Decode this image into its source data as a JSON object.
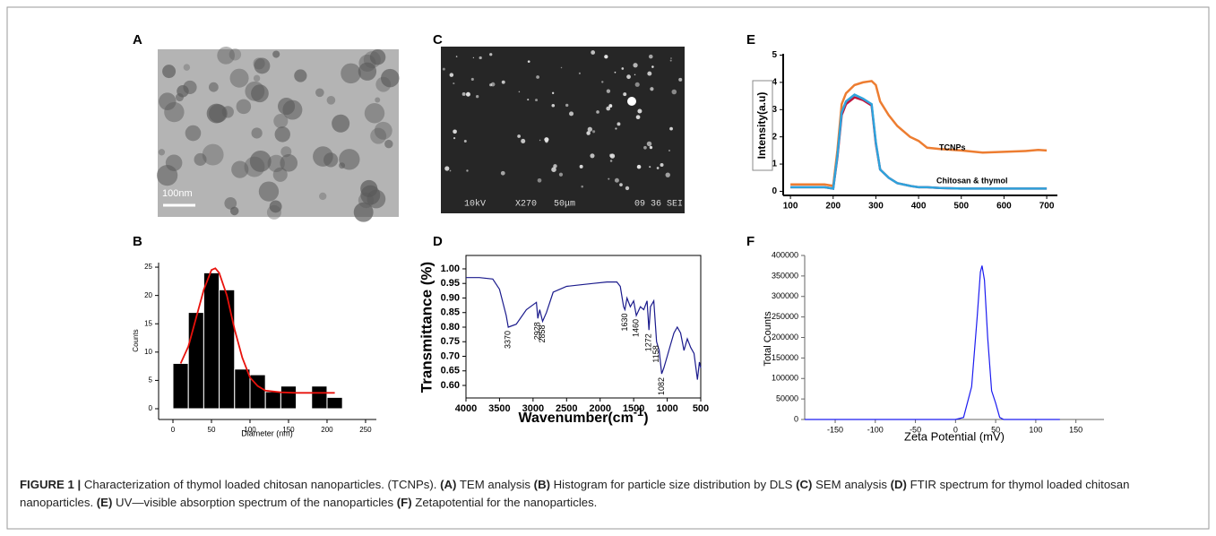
{
  "panels": [
    {
      "letter": "A",
      "scale_bar": "100nm"
    },
    {
      "letter": "C",
      "info": [
        "10kV",
        "X270",
        "50μm",
        "09 36 SEI"
      ]
    }
  ],
  "chart_data": [
    {
      "type": "histogram",
      "panel": "B",
      "xlabel": "Diameter (nm)",
      "ylabel": "Counts",
      "bins": [
        0,
        20,
        40,
        60,
        80,
        100,
        120,
        140,
        160,
        180,
        200,
        220
      ],
      "values": [
        8,
        17,
        24,
        21,
        7,
        6,
        3,
        4,
        0,
        4,
        2
      ],
      "color": "#000000",
      "fit": {
        "color": "#e8120c",
        "x": [
          10,
          20,
          30,
          40,
          50,
          55,
          60,
          70,
          80,
          90,
          100,
          110,
          120,
          140,
          160,
          180,
          210
        ],
        "y": [
          8,
          11,
          16,
          21,
          24.5,
          24.8,
          24,
          20,
          14,
          9,
          5.5,
          4,
          3.2,
          2.9,
          2.8,
          2.8,
          2.8
        ]
      },
      "xlim": [
        -18.6,
        264
      ],
      "ylim": [
        -1.9,
        25.8
      ],
      "xticks": [
        0,
        50,
        100,
        150,
        200,
        250
      ],
      "yticks": [
        0,
        5,
        10,
        15,
        20,
        25
      ]
    },
    {
      "type": "line",
      "panel": "D",
      "ylabel": "Transmittance (%)",
      "xlabel": {
        "text": "Wavenumber(cm",
        "sup": "-1",
        "tail": ")"
      },
      "x": [
        4000,
        3800,
        3600,
        3500,
        3400,
        3370,
        3250,
        3100,
        2950,
        2928,
        2900,
        2858,
        2800,
        2700,
        2500,
        2300,
        2100,
        1900,
        1750,
        1700,
        1650,
        1630,
        1600,
        1550,
        1500,
        1460,
        1400,
        1350,
        1300,
        1272,
        1250,
        1200,
        1158,
        1120,
        1082,
        1050,
        1000,
        950,
        900,
        850,
        800,
        750,
        700,
        650,
        600,
        550,
        520,
        500
      ],
      "values": [
        0.97,
        0.97,
        0.965,
        0.93,
        0.84,
        0.8,
        0.81,
        0.86,
        0.885,
        0.83,
        0.86,
        0.82,
        0.85,
        0.92,
        0.94,
        0.945,
        0.95,
        0.955,
        0.955,
        0.94,
        0.87,
        0.86,
        0.9,
        0.87,
        0.89,
        0.84,
        0.87,
        0.86,
        0.89,
        0.79,
        0.87,
        0.89,
        0.75,
        0.72,
        0.64,
        0.66,
        0.7,
        0.74,
        0.78,
        0.8,
        0.78,
        0.72,
        0.76,
        0.73,
        0.71,
        0.62,
        0.68,
        0.66
      ],
      "color": "#1a1a8c",
      "peak_labels": [
        3370,
        2928,
        2858,
        1630,
        1460,
        1272,
        1158,
        1082
      ],
      "xlim": [
        4000,
        500
      ],
      "ylim": [
        0.557,
        1.046
      ],
      "xticks": [
        4000,
        3500,
        3000,
        2500,
        2000,
        1500,
        1000,
        500
      ],
      "yticks": [
        {
          "value": 1,
          "label": "1.00"
        },
        0.95,
        {
          "value": 0.9,
          "label": "0.90"
        },
        0.85,
        {
          "value": 0.8,
          "label": "0.80"
        },
        0.75,
        {
          "value": 0.7,
          "label": "0.70"
        },
        0.65,
        {
          "value": 0.6,
          "label": "0.60"
        }
      ]
    },
    {
      "type": "line",
      "panel": "E",
      "ylabel": "Intensity(a.u)",
      "x": [
        100,
        150,
        180,
        200,
        210,
        220,
        230,
        250,
        270,
        290,
        300,
        310,
        330,
        350,
        380,
        400,
        420,
        450,
        500,
        550,
        600,
        650,
        680,
        700
      ],
      "series": [
        {
          "name": "TCNPs",
          "color": "#ed7d31",
          "values": [
            0.25,
            0.25,
            0.25,
            0.2,
            1.5,
            3.2,
            3.6,
            3.9,
            4.0,
            4.05,
            3.9,
            3.3,
            2.8,
            2.4,
            2.0,
            1.85,
            1.6,
            1.55,
            1.5,
            1.42,
            1.45,
            1.48,
            1.52,
            1.5
          ]
        },
        {
          "color": "#c0143c",
          "values": [
            0.15,
            0.15,
            0.15,
            0.1,
            1.25,
            2.8,
            3.2,
            3.45,
            3.35,
            3.15,
            1.75,
            0.8,
            0.5,
            0.3,
            0.2,
            0.15,
            0.15,
            0.12,
            0.1,
            0.1,
            0.1,
            0.1,
            0.1,
            0.1
          ]
        },
        {
          "name": "Chitosan & thymol",
          "color": "#2ea3dc",
          "values": [
            0.15,
            0.15,
            0.15,
            0.1,
            1.3,
            2.9,
            3.3,
            3.55,
            3.4,
            3.2,
            1.8,
            0.8,
            0.5,
            0.3,
            0.2,
            0.15,
            0.15,
            0.12,
            0.1,
            0.1,
            0.1,
            0.1,
            0.1,
            0.1
          ]
        }
      ],
      "xlim": [
        83,
        725
      ],
      "ylim": [
        -0.15,
        5.05
      ],
      "xticks": [
        100,
        200,
        300,
        400,
        500,
        600,
        700
      ],
      "yticks": [
        0,
        1,
        2,
        3,
        4,
        5
      ]
    },
    {
      "type": "line",
      "panel": "F",
      "xlabel": "Zeta Potential (mV)",
      "ylabel": "Total Counts",
      "x": [
        -188,
        0,
        10,
        20,
        27,
        31,
        33,
        36,
        40,
        45,
        50,
        55,
        60,
        130
      ],
      "values": [
        0,
        0,
        5000,
        80000,
        250000,
        360000,
        375000,
        340000,
        200000,
        70000,
        40000,
        5000,
        0,
        0
      ],
      "color": "#1c1cf0",
      "xlim": [
        -188,
        185
      ],
      "ylim": [
        0,
        400000
      ],
      "xticks": [
        -150,
        -100,
        -50,
        0,
        50,
        100,
        150
      ],
      "yticks": [
        0,
        50000,
        100000,
        150000,
        200000,
        250000,
        300000,
        350000,
        400000
      ]
    }
  ],
  "caption": [
    {
      "text": "FIGURE 1 |",
      "bold": true
    },
    {
      "text": " Characterization of thymol loaded chitosan nanoparticles. (TCNPs). "
    },
    {
      "text": "(A)",
      "bold": true
    },
    {
      "text": " TEM analysis "
    },
    {
      "text": "(B)",
      "bold": true
    },
    {
      "text": " Histogram for particle size distribution by DLS "
    },
    {
      "text": "(C)",
      "bold": true
    },
    {
      "text": " SEM analysis "
    },
    {
      "text": "(D)",
      "bold": true
    },
    {
      "text": " FTIR spectrum for thymol loaded chitosan nanoparticles. "
    },
    {
      "text": "(E)",
      "bold": true
    },
    {
      "text": " UV—visible absorption spectrum of the nanoparticles "
    },
    {
      "text": "(F)",
      "bold": true
    },
    {
      "text": " Zetapotential for the nanoparticles."
    }
  ]
}
